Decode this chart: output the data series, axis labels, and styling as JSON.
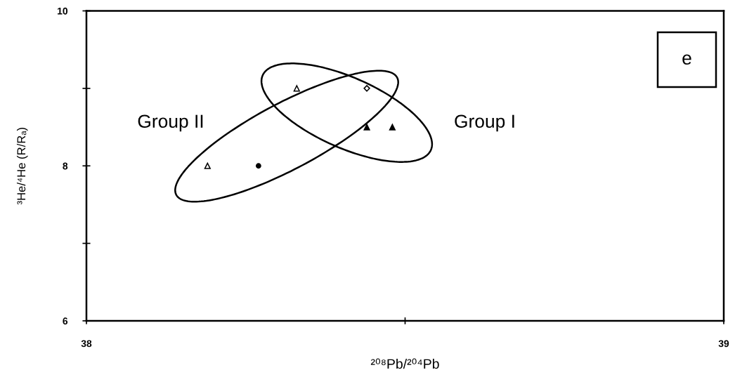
{
  "chart_data": {
    "type": "scatter",
    "xlabel": "²⁰⁸Pb/²⁰⁴Pb",
    "ylabel": "³He/⁴He (R/Rₐ)",
    "xlim": [
      38,
      39
    ],
    "ylim": [
      6,
      10
    ],
    "xticks": [
      38,
      {
        "value": 38.5,
        "label": null
      },
      39
    ],
    "yticks": [
      6,
      {
        "value": 7,
        "label": null
      },
      8,
      {
        "value": 9,
        "label": null
      },
      10
    ],
    "annotations": [
      "Group II",
      "Group I",
      "e"
    ],
    "series": [
      {
        "color": "#000000",
        "marker": "triangle",
        "x": [
          38.19,
          38.33
        ],
        "values": [
          8.0,
          9.0
        ]
      },
      {
        "color": "#000000",
        "marker": "circle",
        "x": [
          38.27
        ],
        "values": [
          8.0
        ]
      },
      {
        "color": "#000000",
        "marker": "diamond",
        "x": [
          38.44
        ],
        "values": [
          9.0
        ]
      },
      {
        "color": "#000000",
        "marker": "triangle",
        "x": [
          38.44,
          38.48
        ],
        "values": [
          8.5,
          8.5
        ]
      }
    ]
  }
}
